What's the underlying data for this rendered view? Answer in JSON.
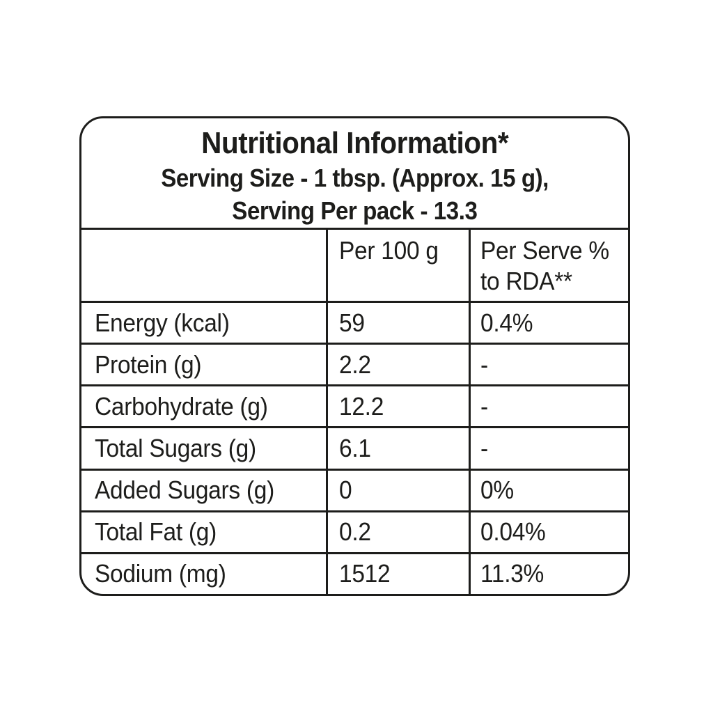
{
  "label": {
    "title": "Nutritional Information*",
    "serving_size_line": "Serving Size - 1 tbsp. (Approx. 15 g),",
    "serving_pack_line": "Serving Per pack - 13.3",
    "table": {
      "col_nutrient_header": "",
      "col_per_100g_header": "Per 100 g",
      "col_per_serve_header_line1": "Per Serve %",
      "col_per_serve_header_line2": "to RDA**",
      "rows": [
        {
          "nutrient": "Energy (kcal)",
          "per_100g": "59",
          "per_serve_rda": "0.4%"
        },
        {
          "nutrient": "Protein (g)",
          "per_100g": "2.2",
          "per_serve_rda": "-"
        },
        {
          "nutrient": "Carbohydrate (g)",
          "per_100g": "12.2",
          "per_serve_rda": "-"
        },
        {
          "nutrient": "Total Sugars (g)",
          "per_100g": "6.1",
          "per_serve_rda": "-"
        },
        {
          "nutrient": "Added Sugars (g)",
          "per_100g": "0",
          "per_serve_rda": "0%"
        },
        {
          "nutrient": "Total Fat (g)",
          "per_100g": "0.2",
          "per_serve_rda": "0.04%"
        },
        {
          "nutrient": "Sodium (mg)",
          "per_100g": "1512",
          "per_serve_rda": "11.3%"
        }
      ]
    },
    "colors": {
      "text": "#1d1d1b",
      "border": "#1d1d1b",
      "background": "#ffffff"
    }
  }
}
